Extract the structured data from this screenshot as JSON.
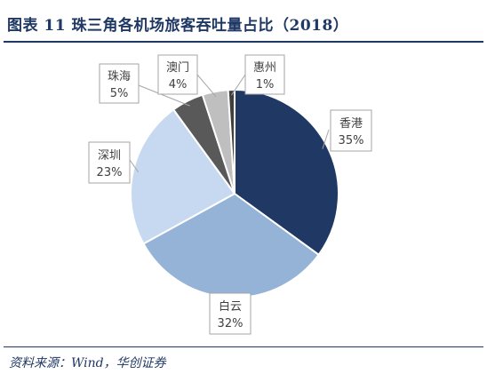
{
  "title": "图表 11   珠三角各机场旅客吞吐量占比（2018）",
  "source": "资料来源：Wind，华创证券",
  "chart_data": {
    "type": "pie",
    "title": "图表 11   珠三角各机场旅客吞吐量占比（2018）",
    "slices": [
      {
        "name": "香港",
        "value": 35,
        "label": "35%",
        "color": "#1f3864"
      },
      {
        "name": "白云",
        "value": 32,
        "label": "32%",
        "color": "#95b3d7"
      },
      {
        "name": "深圳",
        "value": 23,
        "label": "23%",
        "color": "#c6d9f1"
      },
      {
        "name": "珠海",
        "value": 5,
        "label": "5%",
        "color": "#595959"
      },
      {
        "name": "澳门",
        "value": 4,
        "label": "4%",
        "color": "#bfbfbf"
      },
      {
        "name": "惠州",
        "value": 1,
        "label": "1%",
        "color": "#3f3f3f"
      }
    ],
    "start": "12 o'clock",
    "direction": "clockwise",
    "legend": "none",
    "label_style": "callout boxes with leader lines"
  }
}
